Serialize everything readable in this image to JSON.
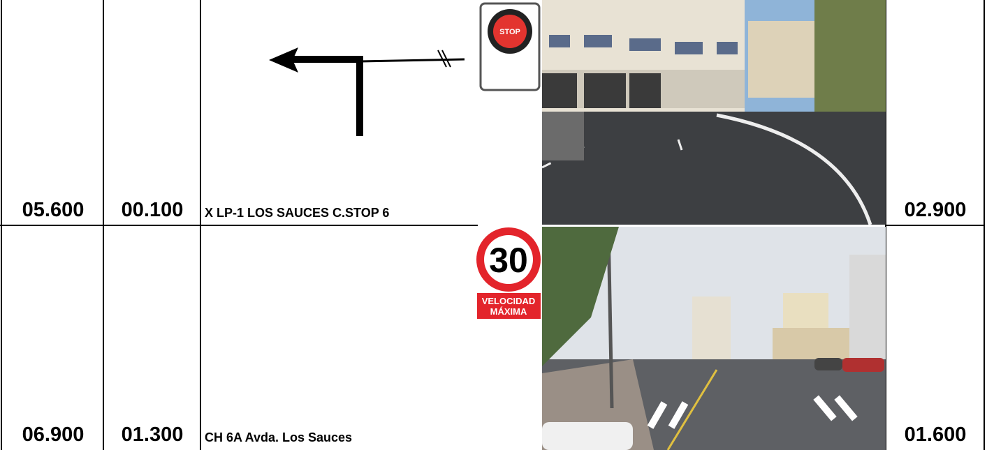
{
  "rows": [
    {
      "total": "05.600",
      "partial": "00.100",
      "description": "X LP-1 LOS SAUCES C.STOP 6",
      "sign": "STOP",
      "remaining": "02.900"
    },
    {
      "total": "06.900",
      "partial": "01.300",
      "description": "CH 6A Avda. Los Sauces",
      "sign": {
        "limit": "30",
        "line1": "VELOCIDAD",
        "line2": "MÁXIMA"
      },
      "remaining": "01.600"
    }
  ]
}
